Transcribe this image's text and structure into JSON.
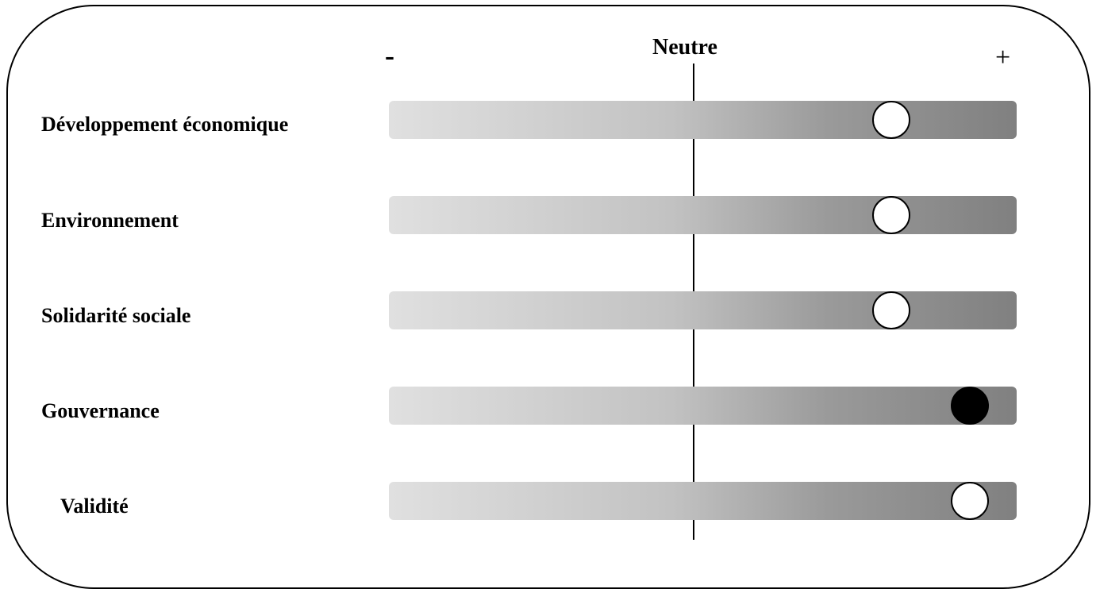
{
  "scale": {
    "minus_label": "-",
    "neutral_label": "Neutre",
    "plus_label": "+"
  },
  "rows": [
    {
      "label": "Développement économique",
      "value": 0.6,
      "marker": "hollow"
    },
    {
      "label": "Environnement",
      "value": 0.6,
      "marker": "hollow"
    },
    {
      "label": "Solidarité sociale",
      "value": 0.6,
      "marker": "hollow"
    },
    {
      "label": "Gouvernance",
      "value": 0.85,
      "marker": "filled"
    },
    {
      "label": "Validité",
      "value": 0.85,
      "marker": "hollow"
    }
  ],
  "colors": {
    "bar_light": "#e0e0e0",
    "bar_dark": "#808080",
    "marker_filled": "#000000",
    "marker_hollow": "#ffffff"
  }
}
